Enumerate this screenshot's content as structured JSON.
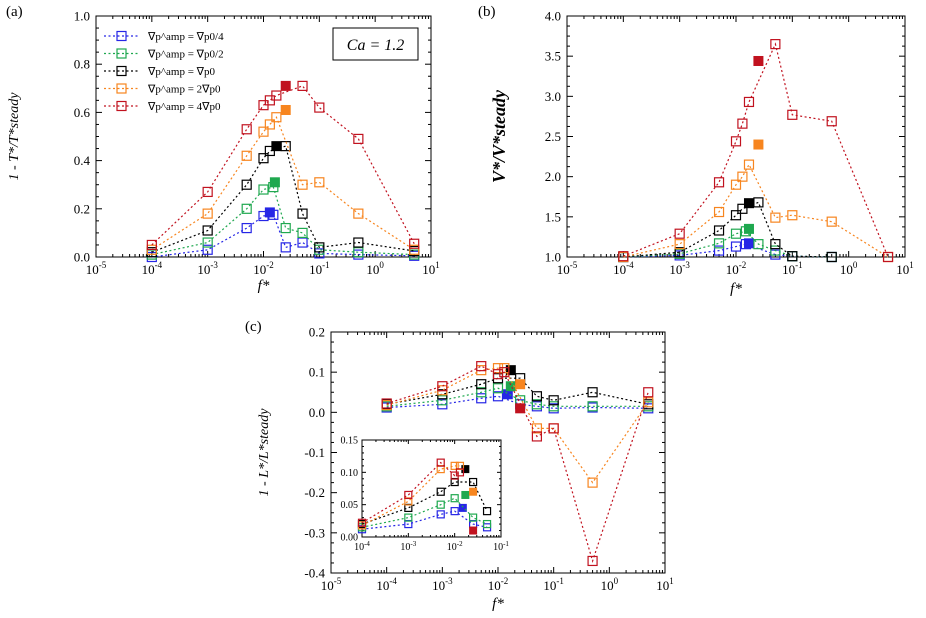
{
  "colors": {
    "blue": "#2626e6",
    "green": "#1fa84f",
    "black": "#000000",
    "orange": "#f7851f",
    "red": "#c1121f"
  },
  "legend": [
    {
      "key": "blue",
      "label": "∇p^amp = ∇p0/4"
    },
    {
      "key": "green",
      "label": "∇p^amp = ∇p0/2"
    },
    {
      "key": "black",
      "label": "∇p^amp = ∇p0"
    },
    {
      "key": "orange",
      "label": "∇p^amp = 2∇p0"
    },
    {
      "key": "red",
      "label": "∇p^amp = 4∇p0"
    }
  ],
  "chart_data": [
    {
      "id": "a",
      "type": "scatter",
      "panel_label": "(a)",
      "xscale": "log",
      "xlim": [
        1e-05,
        10
      ],
      "ylim": [
        0,
        1
      ],
      "yticks": [
        "0.0",
        "0.2",
        "0.4",
        "0.6",
        "0.8",
        "1.0"
      ],
      "xlabel": "f*",
      "ylabel": "1 - T*/T*steady",
      "annotation": "Ca = 1.2",
      "legend_position": "top-left",
      "series": [
        {
          "key": "blue",
          "points": [
            [
              0.0001,
              0.0
            ],
            [
              0.001,
              0.03
            ],
            [
              0.005,
              0.12
            ],
            [
              0.01,
              0.17
            ],
            [
              0.015,
              0.175
            ],
            [
              0.025,
              0.04
            ],
            [
              0.05,
              0.06
            ],
            [
              0.1,
              0.015
            ],
            [
              0.5,
              0.01
            ],
            [
              5,
              0.005
            ]
          ],
          "filled": [
            [
              0.013,
              0.185
            ]
          ]
        },
        {
          "key": "green",
          "points": [
            [
              0.0001,
              0.01
            ],
            [
              0.001,
              0.06
            ],
            [
              0.005,
              0.2
            ],
            [
              0.01,
              0.28
            ],
            [
              0.015,
              0.29
            ],
            [
              0.025,
              0.12
            ],
            [
              0.05,
              0.1
            ],
            [
              0.1,
              0.03
            ],
            [
              0.5,
              0.02
            ],
            [
              5,
              0.01
            ]
          ],
          "filled": [
            [
              0.016,
              0.31
            ]
          ]
        },
        {
          "key": "black",
          "points": [
            [
              0.0001,
              0.02
            ],
            [
              0.001,
              0.11
            ],
            [
              0.005,
              0.3
            ],
            [
              0.01,
              0.41
            ],
            [
              0.013,
              0.44
            ],
            [
              0.025,
              0.46
            ],
            [
              0.05,
              0.18
            ],
            [
              0.1,
              0.04
            ],
            [
              0.5,
              0.06
            ],
            [
              5,
              0.025
            ]
          ],
          "filled": [
            [
              0.017,
              0.46
            ]
          ]
        },
        {
          "key": "orange",
          "points": [
            [
              0.0001,
              0.03
            ],
            [
              0.001,
              0.18
            ],
            [
              0.005,
              0.42
            ],
            [
              0.01,
              0.52
            ],
            [
              0.013,
              0.55
            ],
            [
              0.017,
              0.58
            ],
            [
              0.05,
              0.3
            ],
            [
              0.1,
              0.31
            ],
            [
              0.5,
              0.18
            ],
            [
              5,
              0.03
            ]
          ],
          "filled": [
            [
              0.025,
              0.61
            ]
          ]
        },
        {
          "key": "red",
          "points": [
            [
              0.0001,
              0.05
            ],
            [
              0.001,
              0.27
            ],
            [
              0.005,
              0.53
            ],
            [
              0.01,
              0.63
            ],
            [
              0.013,
              0.65
            ],
            [
              0.017,
              0.67
            ],
            [
              0.05,
              0.71
            ],
            [
              0.1,
              0.62
            ],
            [
              0.5,
              0.49
            ],
            [
              5,
              0.055
            ]
          ],
          "filled": [
            [
              0.025,
              0.71
            ]
          ]
        }
      ]
    },
    {
      "id": "b",
      "type": "scatter",
      "panel_label": "(b)",
      "xscale": "log",
      "xlim": [
        1e-05,
        10
      ],
      "ylim": [
        1,
        4
      ],
      "yticks": [
        "1.0",
        "1.5",
        "2.0",
        "2.5",
        "3.0",
        "3.5",
        "4.0"
      ],
      "xlabel": "f*",
      "ylabel": "V*/V*steady",
      "series": [
        {
          "key": "blue",
          "points": [
            [
              0.0001,
              1.0
            ],
            [
              0.001,
              1.02
            ],
            [
              0.005,
              1.08
            ],
            [
              0.01,
              1.13
            ],
            [
              0.015,
              1.16
            ],
            [
              0.05,
              1.03
            ],
            [
              0.1,
              1.01
            ],
            [
              0.5,
              1.0
            ]
          ],
          "filled": [
            [
              0.017,
              1.17
            ]
          ]
        },
        {
          "key": "green",
          "points": [
            [
              0.0001,
              1.0
            ],
            [
              0.001,
              1.04
            ],
            [
              0.005,
              1.17
            ],
            [
              0.01,
              1.29
            ],
            [
              0.015,
              1.32
            ],
            [
              0.025,
              1.16
            ],
            [
              0.05,
              1.08
            ],
            [
              0.1,
              1.01
            ],
            [
              0.5,
              1.0
            ]
          ],
          "filled": [
            [
              0.017,
              1.35
            ]
          ]
        },
        {
          "key": "black",
          "points": [
            [
              0.0001,
              1.0
            ],
            [
              0.001,
              1.06
            ],
            [
              0.005,
              1.33
            ],
            [
              0.01,
              1.52
            ],
            [
              0.013,
              1.6
            ],
            [
              0.025,
              1.68
            ],
            [
              0.05,
              1.16
            ],
            [
              0.1,
              1.01
            ],
            [
              0.5,
              1.0
            ]
          ],
          "filled": [
            [
              0.017,
              1.67
            ]
          ]
        },
        {
          "key": "orange",
          "points": [
            [
              0.0001,
              1.0
            ],
            [
              0.001,
              1.16
            ],
            [
              0.005,
              1.56
            ],
            [
              0.01,
              1.9
            ],
            [
              0.013,
              2.0
            ],
            [
              0.017,
              2.15
            ],
            [
              0.05,
              1.49
            ],
            [
              0.1,
              1.52
            ],
            [
              0.5,
              1.44
            ],
            [
              5,
              1.0
            ]
          ],
          "filled": [
            [
              0.025,
              2.4
            ]
          ]
        },
        {
          "key": "red",
          "points": [
            [
              0.0001,
              1.01
            ],
            [
              0.001,
              1.29
            ],
            [
              0.005,
              1.93
            ],
            [
              0.01,
              2.44
            ],
            [
              0.013,
              2.66
            ],
            [
              0.017,
              2.93
            ],
            [
              0.05,
              3.65
            ],
            [
              0.1,
              2.77
            ],
            [
              0.5,
              2.69
            ],
            [
              5,
              1.0
            ]
          ],
          "filled": [
            [
              0.025,
              3.44
            ]
          ]
        }
      ]
    },
    {
      "id": "c",
      "type": "scatter",
      "panel_label": "(c)",
      "xscale": "log",
      "xlim": [
        1e-05,
        10
      ],
      "ylim": [
        -0.4,
        0.2
      ],
      "yticks": [
        "-0.4",
        "-0.3",
        "-0.2",
        "-0.1",
        "0.0",
        "0.1",
        "0.2"
      ],
      "xlabel": "f*",
      "ylabel": "1 - L*/L*steady",
      "series": [
        {
          "key": "blue",
          "points": [
            [
              0.0001,
              0.012
            ],
            [
              0.001,
              0.02
            ],
            [
              0.005,
              0.035
            ],
            [
              0.01,
              0.04
            ],
            [
              0.025,
              0.02
            ],
            [
              0.05,
              0.015
            ],
            [
              0.1,
              0.01
            ],
            [
              0.5,
              0.012
            ],
            [
              5,
              0.01
            ]
          ],
          "filled": [
            [
              0.015,
              0.045
            ]
          ]
        },
        {
          "key": "green",
          "points": [
            [
              0.0001,
              0.015
            ],
            [
              0.001,
              0.03
            ],
            [
              0.005,
              0.05
            ],
            [
              0.01,
              0.06
            ],
            [
              0.025,
              0.03
            ],
            [
              0.05,
              0.02
            ],
            [
              0.1,
              0.015
            ],
            [
              0.5,
              0.015
            ],
            [
              5,
              0.015
            ]
          ],
          "filled": [
            [
              0.017,
              0.065
            ]
          ]
        },
        {
          "key": "black",
          "points": [
            [
              0.0001,
              0.02
            ],
            [
              0.001,
              0.045
            ],
            [
              0.005,
              0.07
            ],
            [
              0.01,
              0.085
            ],
            [
              0.025,
              0.085
            ],
            [
              0.05,
              0.04
            ],
            [
              0.1,
              0.03
            ],
            [
              0.5,
              0.05
            ],
            [
              5,
              0.02
            ]
          ],
          "filled": [
            [
              0.017,
              0.105
            ]
          ]
        },
        {
          "key": "orange",
          "points": [
            [
              0.0001,
              0.018
            ],
            [
              0.001,
              0.055
            ],
            [
              0.005,
              0.105
            ],
            [
              0.01,
              0.11
            ],
            [
              0.013,
              0.11
            ],
            [
              0.05,
              -0.04
            ],
            [
              0.1,
              -0.04
            ],
            [
              0.5,
              -0.175
            ],
            [
              5,
              0.025
            ]
          ],
          "filled": [
            [
              0.025,
              0.07
            ]
          ]
        },
        {
          "key": "red",
          "points": [
            [
              0.0001,
              0.022
            ],
            [
              0.001,
              0.065
            ],
            [
              0.005,
              0.115
            ],
            [
              0.01,
              0.095
            ],
            [
              0.013,
              0.1
            ],
            [
              0.05,
              -0.06
            ],
            [
              0.1,
              -0.04
            ],
            [
              0.5,
              -0.37
            ],
            [
              5,
              0.05
            ]
          ],
          "filled": [
            [
              0.025,
              0.01
            ]
          ]
        }
      ]
    },
    {
      "id": "c-inset",
      "type": "scatter",
      "xscale": "log",
      "xlim": [
        0.0001,
        0.1
      ],
      "ylim": [
        0,
        0.15
      ],
      "yticks": [
        "0.00",
        "0.05",
        "0.10",
        "0.15"
      ],
      "series": [
        {
          "key": "blue",
          "points": [
            [
              0.0001,
              0.012
            ],
            [
              0.001,
              0.02
            ],
            [
              0.005,
              0.035
            ],
            [
              0.01,
              0.04
            ],
            [
              0.025,
              0.02
            ],
            [
              0.05,
              0.015
            ]
          ],
          "filled": [
            [
              0.015,
              0.045
            ]
          ]
        },
        {
          "key": "green",
          "points": [
            [
              0.0001,
              0.015
            ],
            [
              0.001,
              0.03
            ],
            [
              0.005,
              0.05
            ],
            [
              0.01,
              0.06
            ],
            [
              0.025,
              0.03
            ],
            [
              0.05,
              0.02
            ]
          ],
          "filled": [
            [
              0.017,
              0.065
            ]
          ]
        },
        {
          "key": "black",
          "points": [
            [
              0.0001,
              0.02
            ],
            [
              0.001,
              0.045
            ],
            [
              0.005,
              0.07
            ],
            [
              0.01,
              0.085
            ],
            [
              0.025,
              0.085
            ],
            [
              0.05,
              0.04
            ]
          ],
          "filled": [
            [
              0.017,
              0.105
            ]
          ]
        },
        {
          "key": "orange",
          "points": [
            [
              0.0001,
              0.018
            ],
            [
              0.001,
              0.055
            ],
            [
              0.005,
              0.105
            ],
            [
              0.01,
              0.11
            ],
            [
              0.013,
              0.11
            ]
          ],
          "filled": [
            [
              0.025,
              0.07
            ]
          ]
        },
        {
          "key": "red",
          "points": [
            [
              0.0001,
              0.022
            ],
            [
              0.001,
              0.065
            ],
            [
              0.005,
              0.115
            ],
            [
              0.01,
              0.095
            ],
            [
              0.013,
              0.1
            ]
          ],
          "filled": [
            [
              0.025,
              0.01
            ]
          ]
        }
      ]
    }
  ]
}
